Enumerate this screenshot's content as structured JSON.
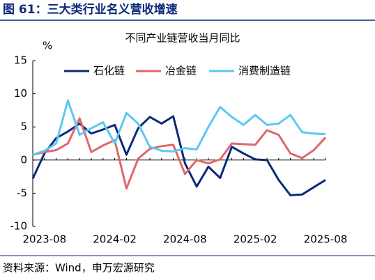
{
  "header": {
    "title": "图 61：三大类行业名义营收增速"
  },
  "chart_data": {
    "type": "line",
    "title": "不同产业链营收当月同比",
    "y_label": "%",
    "categories": [
      null,
      "2023-08",
      null,
      null,
      null,
      null,
      null,
      "2024-02",
      null,
      null,
      null,
      null,
      null,
      "2024-08",
      null,
      null,
      null,
      null,
      null,
      "2025-02",
      null,
      null,
      null,
      null,
      null,
      "2025-08"
    ],
    "series": [
      {
        "name": "石化链",
        "color": "#0b2a78",
        "values": [
          -2.8,
          1.0,
          3.3,
          4.3,
          5.5,
          4.0,
          4.6,
          5.3,
          0.8,
          4.8,
          6.5,
          5.5,
          6.6,
          -0.5,
          -4.0,
          -1.0,
          -2.7,
          2.0,
          1.0,
          0.1,
          0.0,
          -3.0,
          -5.3,
          -5.2,
          -4.1,
          -3.0
        ]
      },
      {
        "name": "冶金链",
        "color": "#e0676b",
        "values": [
          0.8,
          1.2,
          1.5,
          2.5,
          6.3,
          1.2,
          2.2,
          3.0,
          -4.3,
          0.2,
          1.7,
          2.1,
          2.3,
          -2.1,
          0.0,
          -0.5,
          0.1,
          2.5,
          2.4,
          2.3,
          4.5,
          3.8,
          1.0,
          0.3,
          1.5,
          3.4
        ]
      },
      {
        "name": "消费制造链",
        "color": "#5bc8f5",
        "values": [
          0.8,
          1.4,
          2.5,
          9.0,
          3.8,
          4.8,
          5.7,
          2.5,
          7.1,
          5.5,
          2.0,
          1.4,
          1.3,
          1.8,
          1.6,
          5.0,
          8.0,
          6.5,
          5.3,
          6.8,
          5.3,
          5.5,
          6.8,
          4.2,
          4.0,
          3.9
        ]
      }
    ],
    "ylim": [
      -10,
      15
    ],
    "yticks": [
      -10,
      -5,
      0,
      5,
      10,
      15
    ]
  },
  "source": "资料来源：Wind，申万宏源研究"
}
